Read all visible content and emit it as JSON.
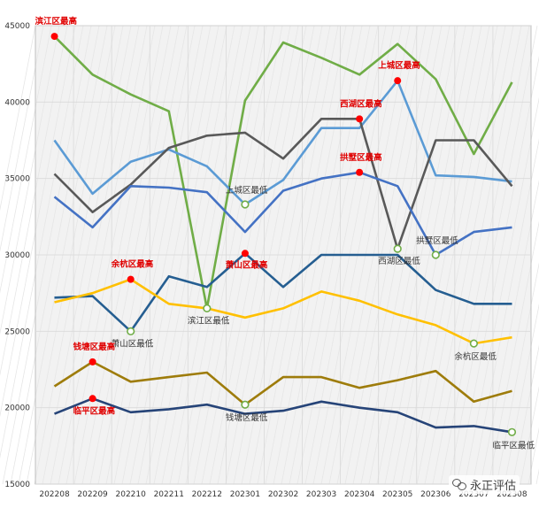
{
  "chart_data": {
    "type": "line",
    "categories": [
      "202208",
      "202209",
      "202210",
      "202211",
      "202212",
      "202301",
      "202302",
      "202303",
      "202304",
      "202305",
      "202306",
      "202307",
      "202308"
    ],
    "ylim": [
      15000,
      45000
    ],
    "yticks": [
      15000,
      20000,
      25000,
      30000,
      35000,
      40000,
      45000
    ],
    "grid": true,
    "series": [
      {
        "color": "#70ad47",
        "values": [
          44300,
          41800,
          40500,
          39400,
          26500,
          40100,
          43900,
          42900,
          41800,
          43800,
          41500,
          36600,
          41300
        ]
      },
      {
        "color": "#5b9bd5",
        "values": [
          37500,
          34000,
          36100,
          36900,
          35800,
          33300,
          34900,
          38300,
          38300,
          41400,
          35200,
          35100,
          34800
        ]
      },
      {
        "color": "#595959",
        "values": [
          35300,
          32800,
          34600,
          37000,
          37800,
          38000,
          36300,
          38900,
          38900,
          30400,
          37500,
          37500,
          34500
        ]
      },
      {
        "color": "#4472c4",
        "values": [
          33800,
          31800,
          34500,
          34400,
          34100,
          31500,
          34200,
          35000,
          35400,
          34500,
          30000,
          31500,
          31800
        ]
      },
      {
        "color": "#255e91",
        "values": [
          27200,
          27300,
          25000,
          28600,
          27900,
          30100,
          27900,
          30000,
          30000,
          30000,
          27700,
          26800,
          26800
        ]
      },
      {
        "color": "#ffc000",
        "values": [
          26900,
          27500,
          28400,
          26800,
          26500,
          25900,
          26500,
          27600,
          27000,
          26100,
          25400,
          24200,
          24600
        ]
      },
      {
        "color": "#9e7c0b",
        "values": [
          21400,
          23000,
          21700,
          22000,
          22300,
          20200,
          22000,
          22000,
          21300,
          21800,
          22400,
          20400,
          21100
        ]
      },
      {
        "color": "#264478",
        "values": [
          19600,
          20600,
          19700,
          19900,
          20200,
          19600,
          19800,
          20400,
          20000,
          19700,
          18700,
          18800,
          18400
        ]
      }
    ],
    "annotations": [
      {
        "text": "滨江区最高",
        "kind": "high",
        "series": 0,
        "index": 0,
        "dx": -22,
        "dy": -14
      },
      {
        "text": "滨江区最低",
        "kind": "low",
        "series": 0,
        "index": 4,
        "dx": -22,
        "dy": 17
      },
      {
        "text": "上城区最低",
        "kind": "low",
        "series": 1,
        "index": 5,
        "dx": -22,
        "dy": -13
      },
      {
        "text": "上城区最高",
        "kind": "high",
        "series": 1,
        "index": 9,
        "dx": -22,
        "dy": -14
      },
      {
        "text": "西湖区最高",
        "kind": "high",
        "series": 2,
        "index": 8,
        "dx": -22,
        "dy": -14
      },
      {
        "text": "西湖区最低",
        "kind": "low",
        "series": 2,
        "index": 9,
        "dx": -22,
        "dy": 17
      },
      {
        "text": "拱墅区最高",
        "kind": "high",
        "series": 3,
        "index": 8,
        "dx": -22,
        "dy": -14
      },
      {
        "text": "拱墅区最低",
        "kind": "low",
        "series": 3,
        "index": 10,
        "dx": -22,
        "dy": -13
      },
      {
        "text": "萧山区最高",
        "kind": "high",
        "series": 4,
        "index": 5,
        "dx": -22,
        "dy": 16
      },
      {
        "text": "萧山区最低",
        "kind": "low",
        "series": 4,
        "index": 2,
        "dx": -22,
        "dy": 17
      },
      {
        "text": "余杭区最高",
        "kind": "high",
        "series": 5,
        "index": 2,
        "dx": -22,
        "dy": -14
      },
      {
        "text": "余杭区最低",
        "kind": "low",
        "series": 5,
        "index": 11,
        "dx": -22,
        "dy": 18
      },
      {
        "text": "钱塘区最高",
        "kind": "high",
        "series": 6,
        "index": 1,
        "dx": -22,
        "dy": -14
      },
      {
        "text": "钱塘区最低",
        "kind": "low",
        "series": 6,
        "index": 5,
        "dx": -22,
        "dy": 18
      },
      {
        "text": "临平区最高",
        "kind": "high",
        "series": 7,
        "index": 1,
        "dx": -22,
        "dy": 17
      },
      {
        "text": "临平区最低",
        "kind": "low",
        "series": 7,
        "index": 12,
        "dx": -22,
        "dy": 18
      }
    ],
    "colors": {
      "high_marker": "#ff0000",
      "low_marker_stroke": "#70ad47",
      "grid": "#d9d9d9",
      "background": "#f2f2f2"
    }
  },
  "watermark": {
    "text": "永正评估",
    "icon": "wechat-icon"
  }
}
